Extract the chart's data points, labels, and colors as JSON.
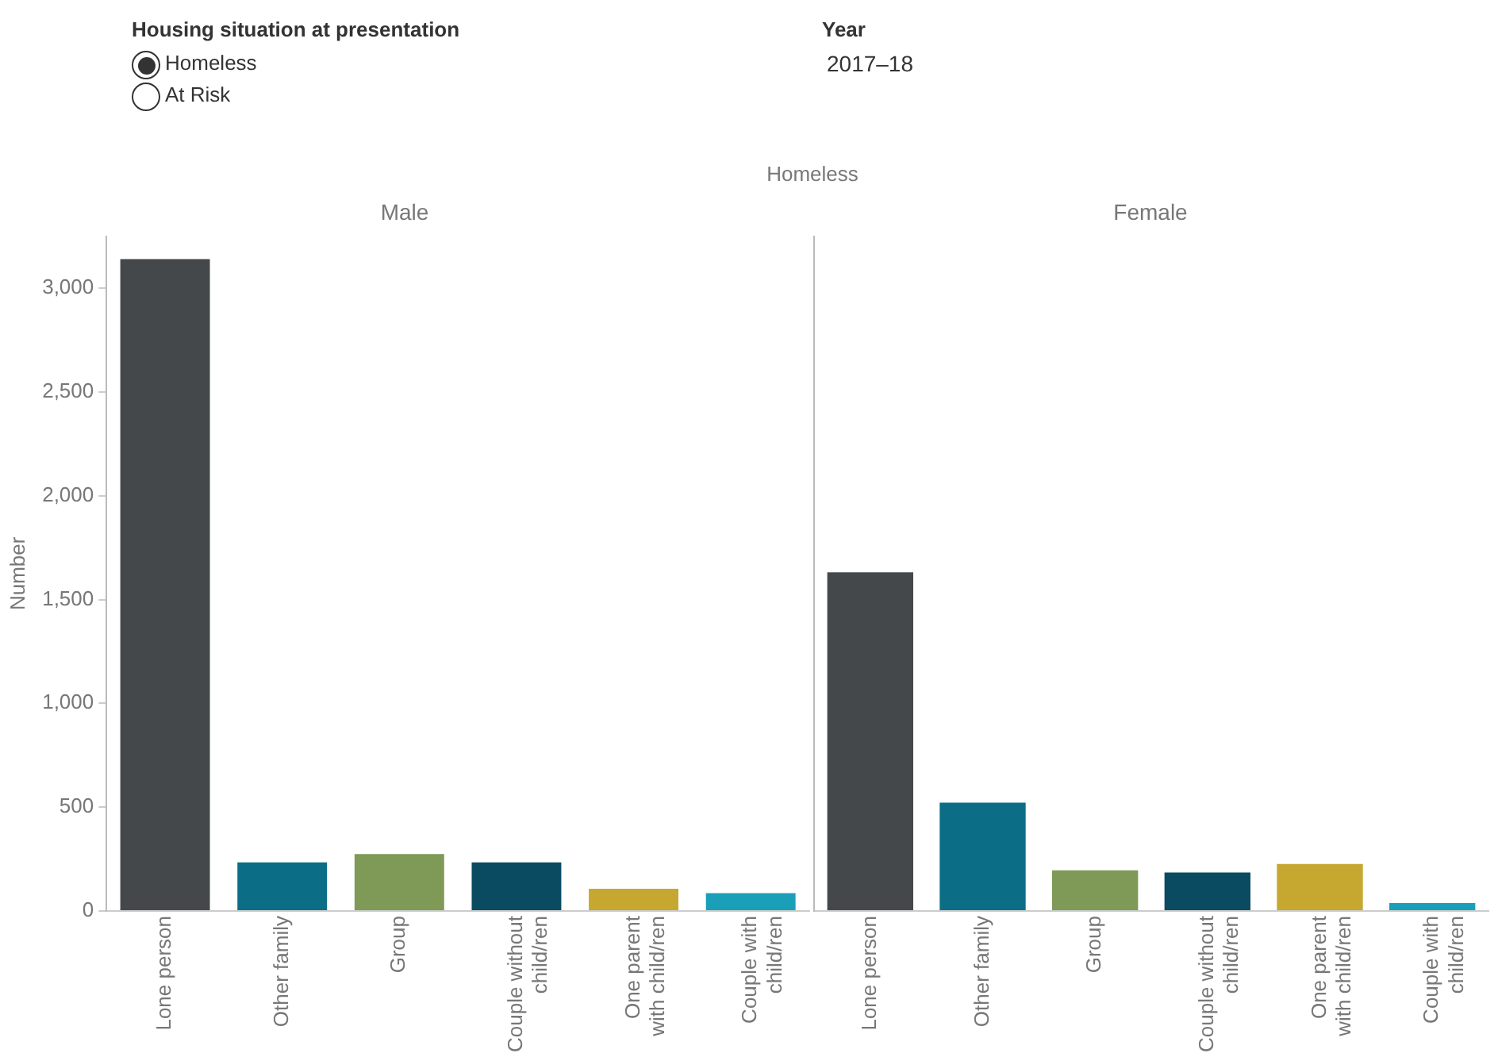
{
  "chart_data": [
    {
      "type": "bar",
      "title": "Male",
      "ylabel": "Number",
      "categories": [
        "Lone person",
        "Other family",
        "Group",
        "Couple without child/ren",
        "One parent with child/ren",
        "Couple with child/ren"
      ],
      "values": [
        3140,
        234,
        274,
        234,
        107,
        86
      ],
      "colors": [
        "#45484b",
        "#0b6e86",
        "#7e9a56",
        "#0a4b62",
        "#c6a831",
        "#19a0b8"
      ],
      "ylim": [
        0,
        3250
      ],
      "yticks": [
        0,
        500,
        {
          "value": 1000,
          "label": "1,000"
        },
        {
          "value": 1500,
          "label": "1,500"
        },
        {
          "value": 2000,
          "label": "2,000"
        },
        {
          "value": 2500,
          "label": "2,500"
        },
        {
          "value": 3000,
          "label": "3,000"
        }
      ],
      "annotations": [
        "Housing situation at presentation",
        "Homeless",
        "At Risk",
        "Year",
        "2017–18",
        "Homeless"
      ]
    },
    {
      "type": "bar",
      "title": "Female",
      "categories": [
        "Lone person",
        "Other family",
        "Group",
        "Couple without child/ren",
        "One parent with child/ren",
        "Couple with child/ren"
      ],
      "values": [
        1631,
        522,
        196,
        185,
        226,
        38
      ],
      "colors": [
        "#45484b",
        "#0b6e86",
        "#7e9a56",
        "#0a4b62",
        "#c6a831",
        "#19a0b8"
      ],
      "ylim": [
        0,
        3250
      ],
      "yticks": [
        0,
        500,
        1000,
        1500,
        2000,
        2500,
        3000
      ],
      "tick_labels": "x"
    }
  ]
}
